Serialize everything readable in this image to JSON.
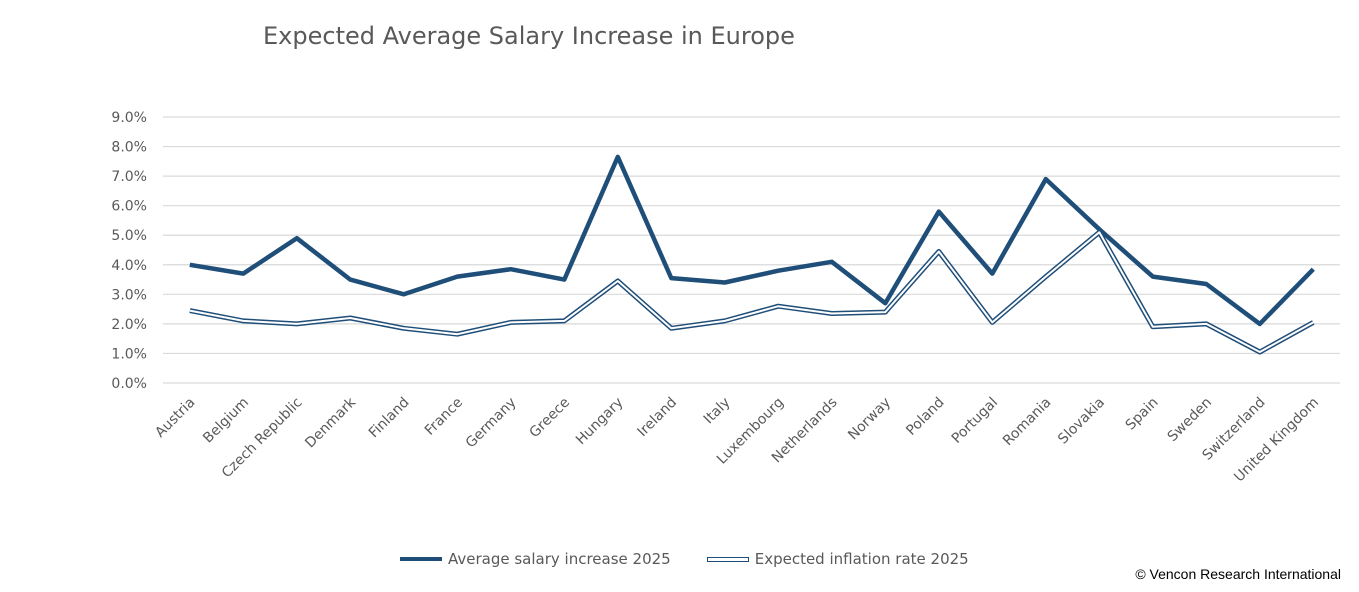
{
  "chart_data": {
    "type": "line",
    "title": "Expected Average Salary Increase in Europe",
    "xlabel": "",
    "ylabel": "",
    "ylim": [
      0,
      9
    ],
    "yticks": [
      "0.0%",
      "1.0%",
      "2.0%",
      "3.0%",
      "4.0%",
      "5.0%",
      "6.0%",
      "7.0%",
      "8.0%",
      "9.0%"
    ],
    "grid": true,
    "legend_position": "bottom",
    "categories": [
      "Austria",
      "Belgium",
      "Czech Republic",
      "Denmark",
      "Finland",
      "France",
      "Germany",
      "Greece",
      "Hungary",
      "Ireland",
      "Italy",
      "Luxembourg",
      "Netherlands",
      "Norway",
      "Poland",
      "Portugal",
      "Romania",
      "Slovakia",
      "Spain",
      "Sweden",
      "Switzerland",
      "United Kingdom"
    ],
    "series": [
      {
        "name": "Average salary increase 2025",
        "style": "thick",
        "color": "#1f4e79",
        "values": [
          4.0,
          3.7,
          4.9,
          3.5,
          3.0,
          3.6,
          3.85,
          3.5,
          7.65,
          3.55,
          3.4,
          3.8,
          4.1,
          2.7,
          5.8,
          3.7,
          6.9,
          5.2,
          3.6,
          3.35,
          2.0,
          3.85
        ]
      },
      {
        "name": "Expected inflation rate 2025",
        "style": "double",
        "color": "#1f4e79",
        "values": [
          2.45,
          2.1,
          2.0,
          2.2,
          1.85,
          1.65,
          2.05,
          2.1,
          3.45,
          1.85,
          2.1,
          2.6,
          2.35,
          2.4,
          4.45,
          2.05,
          3.6,
          5.1,
          1.9,
          2.0,
          1.05,
          2.05
        ]
      }
    ]
  },
  "credit": "© Vencon Research International"
}
